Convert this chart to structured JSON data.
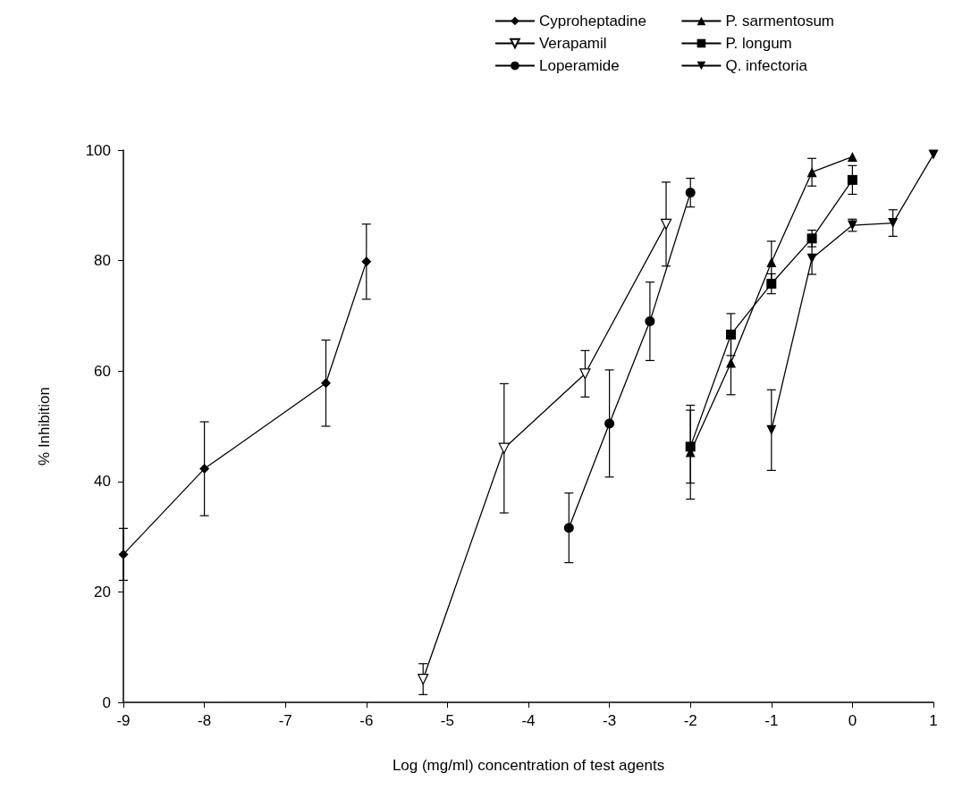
{
  "chart_data": {
    "type": "line",
    "xlabel": "Log (mg/ml) concentration of test agents",
    "ylabel": "% Inhibition",
    "xlim": [
      -9,
      1
    ],
    "xticks": [
      -9,
      -8,
      -7,
      -6,
      -5,
      -4,
      -3,
      -2,
      -1,
      0,
      1
    ],
    "ylim": [
      0,
      100
    ],
    "yticks": [
      0,
      20,
      40,
      60,
      80,
      100
    ],
    "grid": false,
    "legend": "top right",
    "line_style": "solid",
    "series": [
      {
        "name": "Cyproheptadine",
        "color": "#000000",
        "marker": "diamond",
        "x": [
          -9,
          -8,
          -6.5,
          -6
        ],
        "values": [
          26.8,
          42.3,
          57.8,
          79.8
        ],
        "errors": [
          4.7,
          8.5,
          7.8,
          6.8
        ]
      },
      {
        "name": "Verapamil",
        "color": "#000000",
        "marker": "triangle-down-open",
        "x": [
          -5.3,
          -4.3,
          -3.3,
          -2.3
        ],
        "values": [
          4.2,
          46,
          59.5,
          86.6
        ],
        "errors": [
          2.8,
          11.7,
          4.2,
          7.6
        ]
      },
      {
        "name": "Loperamide",
        "color": "#000000",
        "marker": "circle",
        "x": [
          -3.5,
          -3,
          -2.5,
          -2
        ],
        "values": [
          31.6,
          50.5,
          69,
          92.3
        ],
        "errors": [
          6.3,
          9.7,
          7.1,
          2.6
        ]
      },
      {
        "name": "P. sarmentosum",
        "color": "#000000",
        "marker": "triangle",
        "x": [
          -2,
          -1.5,
          -1,
          -0.5,
          0
        ],
        "values": [
          45.3,
          61.5,
          79.7,
          96,
          98.8
        ],
        "errors": [
          8.5,
          5.8,
          3.8,
          2.5,
          null
        ]
      },
      {
        "name": "P. longum",
        "color": "#000000",
        "marker": "square",
        "x": [
          -2,
          -1.5,
          -1,
          -0.5,
          0
        ],
        "values": [
          46.3,
          66.6,
          75.8,
          84,
          94.6
        ],
        "errors": [
          6.6,
          3.8,
          1.8,
          1.5,
          2.6
        ]
      },
      {
        "name": "Q. infectoria",
        "color": "#000000",
        "marker": "triangle-down",
        "x": [
          -1,
          -0.5,
          0,
          0.5,
          1
        ],
        "values": [
          49.3,
          80.4,
          86.4,
          86.8,
          99.2
        ],
        "errors": [
          7.3,
          2.9,
          1.1,
          2.4,
          null
        ]
      }
    ]
  }
}
